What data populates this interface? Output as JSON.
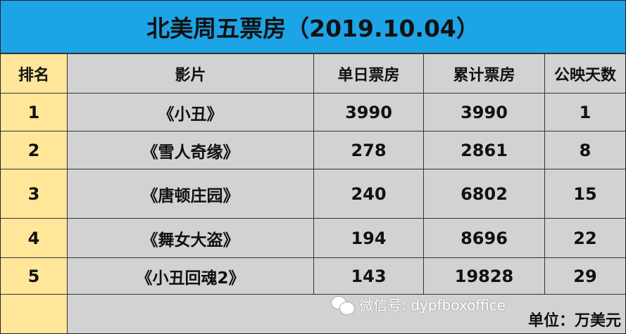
{
  "title": "北美周五票房（2019.10.04）",
  "headers": [
    "排名",
    "影片",
    "单日票房",
    "累计票房",
    "公映天数"
  ],
  "rows": [
    {
      "rank": "1",
      "film": "《小丑》",
      "daily": "3990",
      "total": "3990",
      "days": "1"
    },
    {
      "rank": "2",
      "film": "《雪人奇缘》",
      "daily": "278",
      "total": "2861",
      "days": "8"
    },
    {
      "rank": "3",
      "film": "《唐顿庄园》",
      "daily": "240",
      "total": "6802",
      "days": "15"
    },
    {
      "rank": "4",
      "film": "《舞女大盗》",
      "daily": "194",
      "total": "8696",
      "days": "22"
    },
    {
      "rank": "5",
      "film": "《小丑回魂2》",
      "daily": "143",
      "total": "19828",
      "days": "29"
    }
  ],
  "unit": "单位：万美元",
  "watermark": "微信号: dypfboxoffice",
  "colors": {
    "title_bg": "#1da4e6",
    "rank_bg": "#ffe699",
    "cell_bg": "#d2d2d2"
  }
}
